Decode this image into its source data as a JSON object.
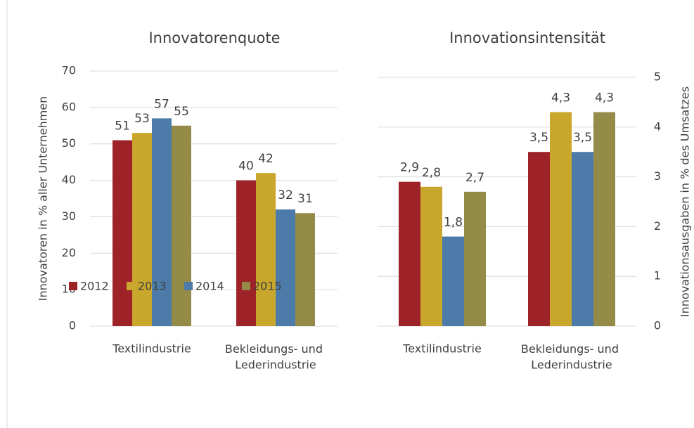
{
  "chart_data": [
    {
      "type": "bar",
      "title": "Innovatorenquote",
      "y_label": "Innovatoren in % aller Unternehmen",
      "categories": [
        "Textilindustrie",
        "Bekleidungs- und Lederindustrie"
      ],
      "series": [
        {
          "name": "2012",
          "color": "#9e2329",
          "values": [
            51,
            40
          ]
        },
        {
          "name": "2013",
          "color": "#c9a62c",
          "values": [
            53,
            42
          ]
        },
        {
          "name": "2014",
          "color": "#4c7ba9",
          "values": [
            57,
            32
          ]
        },
        {
          "name": "2015",
          "color": "#958b48",
          "values": [
            55,
            31
          ]
        }
      ],
      "ylim": [
        0,
        70
      ],
      "yticks": [
        0,
        10,
        20,
        30,
        40,
        50,
        60,
        70
      ],
      "grid": true,
      "axis_side": "left",
      "legend": "bottom-left"
    },
    {
      "type": "bar",
      "title": "Innovationsintensität",
      "y_label": "Innovationsausgaben in % des Umsatzes",
      "categories": [
        "Textilindustrie",
        "Bekleidungs- und Lederindustrie"
      ],
      "series": [
        {
          "name": "2012",
          "color": "#9e2329",
          "values": [
            2.9,
            3.5
          ],
          "value_labels": [
            "2,9",
            "3,5"
          ]
        },
        {
          "name": "2013",
          "color": "#c9a62c",
          "values": [
            2.8,
            4.3
          ],
          "value_labels": [
            "2,8",
            "4,3"
          ]
        },
        {
          "name": "2014",
          "color": "#4c7ba9",
          "values": [
            1.8,
            3.5
          ],
          "value_labels": [
            "1,8",
            "3,5"
          ]
        },
        {
          "name": "2015",
          "color": "#958b48",
          "values": [
            2.7,
            4.3
          ],
          "value_labels": [
            "2,7",
            "4,3"
          ]
        }
      ],
      "ylim": [
        0,
        5
      ],
      "yticks": [
        0,
        1,
        2,
        3,
        4,
        5
      ],
      "grid": true,
      "axis_side": "right"
    }
  ]
}
